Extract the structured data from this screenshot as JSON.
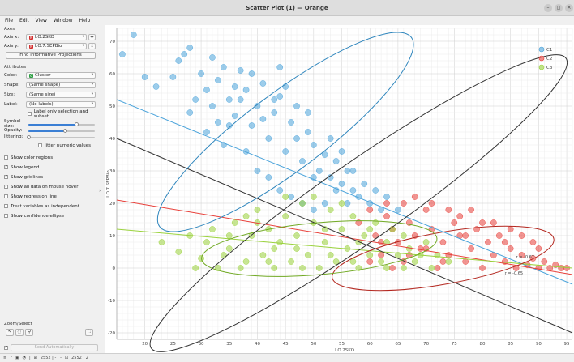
{
  "window": {
    "title": "Scatter Plot (1) — Orange",
    "minimize": "–",
    "maximize": "◻",
    "close": "×"
  },
  "menu": [
    "File",
    "Edit",
    "View",
    "Window",
    "Help"
  ],
  "axes": {
    "section": "Axes",
    "x_label": "Axis x:",
    "x_value": "I.O.2SKO",
    "y_label": "Axis y:",
    "y_value": "I.O.7.SEPBio",
    "find_button": "Find Informative Projections"
  },
  "attributes": {
    "section": "Attributes",
    "color_label": "Color:",
    "color_value": "Cluster",
    "shape_label": "Shape:",
    "shape_value": "(Same shape)",
    "size_label": "Size:",
    "size_value": "(Same size)",
    "label_label": "Label:",
    "label_value": "(No labels)",
    "label_only_selection": "Label only selection and subset",
    "symbol_size_label": "Symbol size:",
    "symbol_size_level": 0.72,
    "opacity_label": "Opacity:",
    "opacity_level": 0.55,
    "jittering_label": "Jittering:",
    "jittering_level": 0.0,
    "jitter_numeric": "Jitter numeric values"
  },
  "options": [
    {
      "label": "Show color regions",
      "checked": false
    },
    {
      "label": "Show legend",
      "checked": true
    },
    {
      "label": "Show gridlines",
      "checked": true
    },
    {
      "label": "Show all data on mouse hover",
      "checked": true
    },
    {
      "label": "Show regression line",
      "checked": true
    },
    {
      "label": "Treat variables as independent",
      "checked": false
    },
    {
      "label": "Show confidence ellipse",
      "checked": true
    }
  ],
  "zoom": {
    "section": "Zoom/Select"
  },
  "send": {
    "checked": true,
    "label": "Send Automatically"
  },
  "statusbar": {
    "data_in": "2552 | - | -",
    "data_out": "2552 | 2"
  },
  "chart_data": {
    "type": "scatter",
    "xlabel": "I.O.2SKO",
    "ylabel": "I.O.7.SEPBio",
    "xlim": [
      15,
      96
    ],
    "ylim": [
      -22,
      74
    ],
    "xticks": [
      20,
      25,
      30,
      35,
      40,
      45,
      50,
      55,
      60,
      65,
      70,
      75,
      80,
      85,
      90,
      95
    ],
    "yticks": [
      -20,
      -10,
      0,
      10,
      20,
      30,
      40,
      50,
      60,
      70
    ],
    "grid": true,
    "legend_position": "top-right",
    "legend": [
      "C1",
      "C2",
      "C3"
    ],
    "colors": {
      "C1": "#4ca4db",
      "C2": "#e8403a",
      "C3": "#9ad23c"
    },
    "series": [
      {
        "name": "C1",
        "center": [
          45,
          43
        ],
        "points": [
          [
            16,
            66
          ],
          [
            18,
            72
          ],
          [
            20,
            59
          ],
          [
            22,
            56
          ],
          [
            25,
            59
          ],
          [
            26,
            64
          ],
          [
            27,
            66
          ],
          [
            28,
            68
          ],
          [
            30,
            60
          ],
          [
            31,
            55
          ],
          [
            32,
            50
          ],
          [
            33,
            58
          ],
          [
            34,
            62
          ],
          [
            35,
            52
          ],
          [
            36,
            47
          ],
          [
            37,
            61
          ],
          [
            38,
            55
          ],
          [
            39,
            44
          ],
          [
            40,
            50
          ],
          [
            41,
            57
          ],
          [
            42,
            40
          ],
          [
            43,
            48
          ],
          [
            44,
            53
          ],
          [
            45,
            36
          ],
          [
            46,
            45
          ],
          [
            47,
            50
          ],
          [
            48,
            33
          ],
          [
            49,
            42
          ],
          [
            50,
            38
          ],
          [
            51,
            30
          ],
          [
            52,
            35
          ],
          [
            53,
            28
          ],
          [
            54,
            33
          ],
          [
            55,
            26
          ],
          [
            56,
            30
          ],
          [
            57,
            24
          ],
          [
            58,
            22
          ],
          [
            60,
            20
          ],
          [
            62,
            18
          ],
          [
            28,
            48
          ],
          [
            31,
            42
          ],
          [
            34,
            38
          ],
          [
            36,
            56
          ],
          [
            38,
            36
          ],
          [
            40,
            30
          ],
          [
            42,
            28
          ],
          [
            44,
            24
          ],
          [
            46,
            22
          ],
          [
            48,
            20
          ],
          [
            50,
            18
          ],
          [
            52,
            20
          ],
          [
            54,
            24
          ],
          [
            33,
            45
          ],
          [
            37,
            52
          ],
          [
            41,
            46
          ],
          [
            43,
            52
          ],
          [
            45,
            56
          ],
          [
            39,
            60
          ],
          [
            47,
            40
          ],
          [
            49,
            48
          ],
          [
            53,
            40
          ],
          [
            55,
            36
          ],
          [
            57,
            30
          ],
          [
            29,
            52
          ],
          [
            32,
            65
          ],
          [
            35,
            44
          ],
          [
            44,
            62
          ],
          [
            50,
            28
          ],
          [
            56,
            20
          ],
          [
            59,
            26
          ],
          [
            61,
            24
          ],
          [
            63,
            22
          ],
          [
            65,
            18
          ]
        ]
      },
      {
        "name": "C2",
        "center": [
          72,
          6
        ],
        "points": [
          [
            58,
            14
          ],
          [
            60,
            18
          ],
          [
            61,
            10
          ],
          [
            62,
            4
          ],
          [
            63,
            16
          ],
          [
            64,
            12
          ],
          [
            65,
            8
          ],
          [
            66,
            2
          ],
          [
            67,
            14
          ],
          [
            68,
            10
          ],
          [
            69,
            6
          ],
          [
            70,
            18
          ],
          [
            71,
            12
          ],
          [
            72,
            0
          ],
          [
            73,
            8
          ],
          [
            74,
            4
          ],
          [
            75,
            14
          ],
          [
            76,
            10
          ],
          [
            77,
            2
          ],
          [
            78,
            6
          ],
          [
            79,
            12
          ],
          [
            80,
            0
          ],
          [
            81,
            8
          ],
          [
            82,
            4
          ],
          [
            83,
            10
          ],
          [
            84,
            2
          ],
          [
            85,
            6
          ],
          [
            86,
            0
          ],
          [
            87,
            4
          ],
          [
            88,
            1
          ],
          [
            89,
            3
          ],
          [
            90,
            0
          ],
          [
            91,
            2
          ],
          [
            92,
            0
          ],
          [
            93,
            1
          ],
          [
            94,
            0
          ],
          [
            95,
            0
          ],
          [
            66,
            20
          ],
          [
            68,
            22
          ],
          [
            70,
            6
          ],
          [
            64,
            0
          ],
          [
            62,
            8
          ],
          [
            60,
            2
          ],
          [
            71,
            20
          ],
          [
            76,
            16
          ],
          [
            80,
            14
          ],
          [
            74,
            18
          ],
          [
            78,
            18
          ],
          [
            82,
            14
          ],
          [
            85,
            12
          ],
          [
            87,
            10
          ],
          [
            89,
            8
          ],
          [
            63,
            20
          ],
          [
            67,
            4
          ],
          [
            73,
            2
          ],
          [
            77,
            10
          ],
          [
            84,
            8
          ],
          [
            90,
            6
          ]
        ]
      },
      {
        "name": "C3",
        "center": [
          50,
          8
        ],
        "points": [
          [
            23,
            8
          ],
          [
            26,
            5
          ],
          [
            28,
            10
          ],
          [
            30,
            3
          ],
          [
            32,
            12
          ],
          [
            33,
            0
          ],
          [
            35,
            6
          ],
          [
            36,
            14
          ],
          [
            38,
            2
          ],
          [
            39,
            10
          ],
          [
            40,
            18
          ],
          [
            41,
            4
          ],
          [
            42,
            12
          ],
          [
            43,
            0
          ],
          [
            44,
            8
          ],
          [
            45,
            16
          ],
          [
            46,
            2
          ],
          [
            47,
            10
          ],
          [
            48,
            20
          ],
          [
            49,
            4
          ],
          [
            50,
            14
          ],
          [
            51,
            0
          ],
          [
            52,
            8
          ],
          [
            53,
            18
          ],
          [
            54,
            2
          ],
          [
            55,
            12
          ],
          [
            56,
            6
          ],
          [
            57,
            16
          ],
          [
            58,
            0
          ],
          [
            59,
            10
          ],
          [
            60,
            4
          ],
          [
            61,
            14
          ],
          [
            62,
            2
          ],
          [
            63,
            8
          ],
          [
            64,
            12
          ],
          [
            65,
            4
          ],
          [
            66,
            10
          ],
          [
            67,
            6
          ],
          [
            68,
            2
          ],
          [
            70,
            8
          ],
          [
            72,
            4
          ],
          [
            74,
            2
          ],
          [
            45,
            22
          ],
          [
            50,
            22
          ],
          [
            55,
            20
          ],
          [
            40,
            14
          ],
          [
            35,
            10
          ],
          [
            37,
            0
          ],
          [
            43,
            6
          ],
          [
            48,
            0
          ],
          [
            53,
            4
          ],
          [
            58,
            8
          ],
          [
            63,
            0
          ],
          [
            47,
            6
          ],
          [
            52,
            12
          ],
          [
            57,
            2
          ],
          [
            42,
            2
          ],
          [
            38,
            16
          ],
          [
            34,
            4
          ],
          [
            31,
            8
          ],
          [
            29,
            0
          ],
          [
            60,
            12
          ],
          [
            66,
            0
          ],
          [
            69,
            4
          ],
          [
            71,
            0
          ]
        ]
      }
    ],
    "regression_lines": [
      {
        "series": "C1",
        "from": [
          15,
          52
        ],
        "to": [
          96,
          -5
        ]
      },
      {
        "series": "C2",
        "from": [
          15,
          21
        ],
        "to": [
          96,
          -2
        ]
      },
      {
        "series": "C3",
        "from": [
          15,
          12
        ],
        "to": [
          96,
          0
        ]
      },
      {
        "series": "all",
        "from": [
          15,
          40
        ],
        "to": [
          96,
          -20
        ]
      }
    ],
    "confidence_ellipses": [
      {
        "series": "C1",
        "center": [
          45,
          42
        ],
        "rx": 28,
        "ry": 12,
        "angle_deg": -37
      },
      {
        "series": "C2",
        "center": [
          73,
          3
        ],
        "rx": 20,
        "ry": 8,
        "angle_deg": -10
      },
      {
        "series": "C3",
        "center": [
          51,
          6
        ],
        "rx": 21,
        "ry": 8,
        "angle_deg": -5
      },
      {
        "series": "all",
        "center": [
          58,
          20
        ],
        "rx": 45,
        "ry": 12,
        "angle_deg": -35
      }
    ],
    "annotations": [
      {
        "text": "r = -0.65",
        "at": [
          84,
          -2
        ]
      },
      {
        "text": "r = -0.67",
        "at": [
          86,
          3
        ]
      }
    ]
  }
}
